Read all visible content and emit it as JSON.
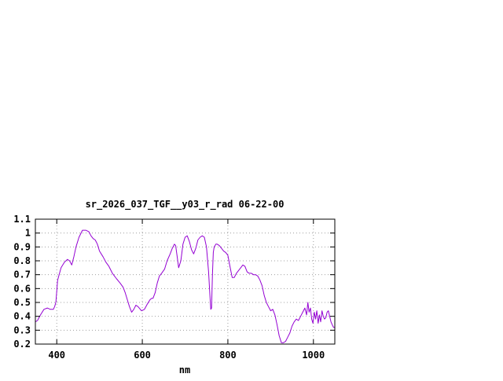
{
  "chart_data": {
    "type": "line",
    "title": "sr_2026_037_TGF__y03_r_rad 06-22-00",
    "xlabel": "nm",
    "ylabel": "",
    "xlim": [
      350,
      1050
    ],
    "ylim": [
      0.2,
      1.1
    ],
    "xticks": [
      400,
      600,
      800,
      1000
    ],
    "xtick_labels": [
      "400",
      "600",
      "800",
      "1000"
    ],
    "yticks": [
      0.2,
      0.3,
      0.4,
      0.5,
      0.6,
      0.7,
      0.8,
      0.9,
      1.0,
      1.1
    ],
    "ytick_labels": [
      "0.2",
      "0.3",
      "0.4",
      "0.5",
      "0.6",
      "0.7",
      "0.8",
      "0.9",
      "1",
      "1.1"
    ],
    "grid": true,
    "line_color": "#9400d3",
    "series": [
      {
        "x": [
          350,
          355,
          362,
          370,
          378,
          385,
          392,
          395,
          398,
          402,
          410,
          418,
          425,
          430,
          435,
          440,
          445,
          452,
          460,
          468,
          475,
          480,
          485,
          490,
          495,
          500,
          508,
          515,
          522,
          530,
          540,
          548,
          555,
          560,
          565,
          570,
          575,
          580,
          585,
          590,
          598,
          605,
          612,
          618,
          622,
          625,
          630,
          635,
          640,
          645,
          652,
          658,
          665,
          670,
          675,
          678,
          681,
          685,
          690,
          695,
          700,
          705,
          710,
          715,
          720,
          725,
          730,
          735,
          740,
          745,
          750,
          755,
          758,
          760,
          762,
          764,
          766,
          768,
          770,
          772,
          775,
          780,
          785,
          790,
          795,
          800,
          805,
          810,
          815,
          820,
          825,
          830,
          835,
          840,
          845,
          850,
          855,
          860,
          865,
          870,
          875,
          880,
          885,
          890,
          895,
          900,
          905,
          910,
          915,
          920,
          925,
          930,
          935,
          940,
          945,
          950,
          955,
          960,
          965,
          970,
          975,
          980,
          984,
          987,
          990,
          993,
          996,
          999,
          1002,
          1005,
          1008,
          1011,
          1014,
          1017,
          1020,
          1023,
          1026,
          1029,
          1032,
          1035,
          1038,
          1041,
          1044,
          1047,
          1050
        ],
        "y": [
          0.36,
          0.37,
          0.41,
          0.45,
          0.46,
          0.45,
          0.45,
          0.47,
          0.5,
          0.66,
          0.75,
          0.79,
          0.81,
          0.8,
          0.77,
          0.83,
          0.9,
          0.97,
          1.02,
          1.02,
          1.01,
          0.98,
          0.96,
          0.95,
          0.92,
          0.87,
          0.83,
          0.79,
          0.76,
          0.71,
          0.67,
          0.64,
          0.61,
          0.57,
          0.52,
          0.47,
          0.43,
          0.45,
          0.48,
          0.47,
          0.44,
          0.45,
          0.49,
          0.52,
          0.53,
          0.53,
          0.57,
          0.64,
          0.69,
          0.71,
          0.74,
          0.8,
          0.85,
          0.89,
          0.92,
          0.91,
          0.84,
          0.75,
          0.8,
          0.92,
          0.97,
          0.98,
          0.94,
          0.88,
          0.85,
          0.89,
          0.95,
          0.97,
          0.98,
          0.97,
          0.9,
          0.72,
          0.55,
          0.45,
          0.46,
          0.7,
          0.86,
          0.9,
          0.91,
          0.92,
          0.92,
          0.91,
          0.89,
          0.87,
          0.86,
          0.84,
          0.76,
          0.68,
          0.68,
          0.71,
          0.73,
          0.75,
          0.77,
          0.76,
          0.72,
          0.71,
          0.71,
          0.7,
          0.7,
          0.69,
          0.66,
          0.62,
          0.55,
          0.5,
          0.47,
          0.44,
          0.45,
          0.41,
          0.34,
          0.26,
          0.21,
          0.21,
          0.22,
          0.25,
          0.28,
          0.33,
          0.36,
          0.38,
          0.37,
          0.4,
          0.43,
          0.46,
          0.41,
          0.5,
          0.43,
          0.46,
          0.38,
          0.35,
          0.43,
          0.38,
          0.44,
          0.35,
          0.41,
          0.36,
          0.44,
          0.4,
          0.38,
          0.39,
          0.43,
          0.44,
          0.4,
          0.36,
          0.34,
          0.32,
          0.32
        ]
      }
    ]
  }
}
